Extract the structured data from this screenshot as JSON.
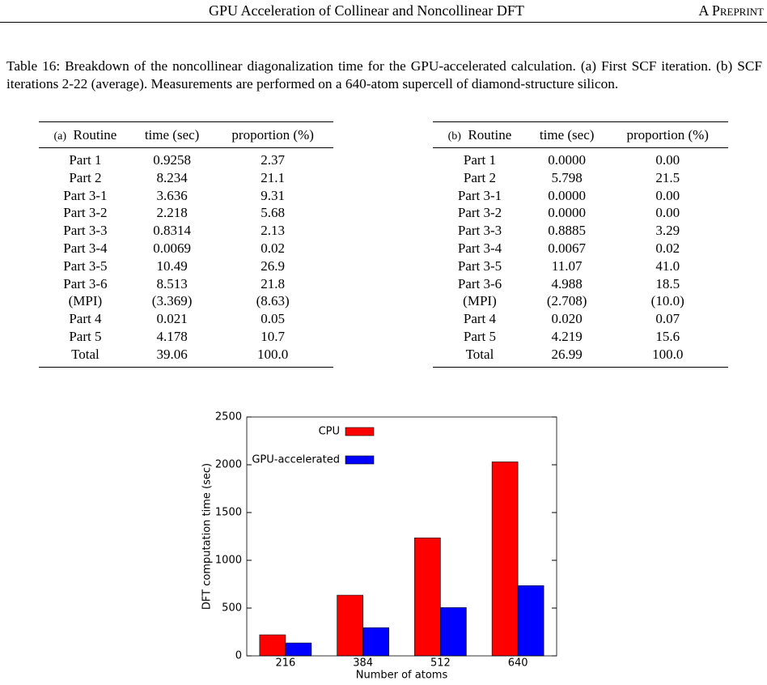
{
  "header": {
    "title": "GPU Acceleration of Collinear and Noncollinear DFT",
    "tag": "A Preprint"
  },
  "caption": "Table 16: Breakdown of the noncollinear diagonalization time for the GPU-accelerated calculation. (a) First SCF iteration. (b) SCF iterations 2-22 (average). Measurements are performed on a 640-atom supercell of diamond-structure silicon.",
  "tables": [
    {
      "label": "(a)",
      "columns": [
        "Routine",
        "time (sec)",
        "proportion (%)"
      ],
      "rows": [
        [
          "Part 1",
          "0.9258",
          "2.37"
        ],
        [
          "Part 2",
          "8.234",
          "21.1"
        ],
        [
          "Part 3-1",
          "3.636",
          "9.31"
        ],
        [
          "Part 3-2",
          "2.218",
          "5.68"
        ],
        [
          "Part 3-3",
          "0.8314",
          "2.13"
        ],
        [
          "Part 3-4",
          "0.0069",
          "0.02"
        ],
        [
          "Part 3-5",
          "10.49",
          "26.9"
        ],
        [
          "Part 3-6",
          "8.513",
          "21.8"
        ],
        [
          "(MPI)",
          "(3.369)",
          "(8.63)"
        ],
        [
          "Part 4",
          "0.021",
          "0.05"
        ],
        [
          "Part 5",
          "4.178",
          "10.7"
        ],
        [
          "Total",
          "39.06",
          "100.0"
        ]
      ]
    },
    {
      "label": "(b)",
      "columns": [
        "Routine",
        "time (sec)",
        "proportion (%)"
      ],
      "rows": [
        [
          "Part 1",
          "0.0000",
          "0.00"
        ],
        [
          "Part 2",
          "5.798",
          "21.5"
        ],
        [
          "Part 3-1",
          "0.0000",
          "0.00"
        ],
        [
          "Part 3-2",
          "0.0000",
          "0.00"
        ],
        [
          "Part 3-3",
          "0.8885",
          "3.29"
        ],
        [
          "Part 3-4",
          "0.0067",
          "0.02"
        ],
        [
          "Part 3-5",
          "11.07",
          "41.0"
        ],
        [
          "Part 3-6",
          "4.988",
          "18.5"
        ],
        [
          "(MPI)",
          "(2.708)",
          "(10.0)"
        ],
        [
          "Part 4",
          "0.020",
          "0.07"
        ],
        [
          "Part 5",
          "4.219",
          "15.6"
        ],
        [
          "Total",
          "26.99",
          "100.0"
        ]
      ]
    }
  ],
  "chart_data": {
    "type": "bar",
    "x_label": "Number of atoms",
    "y_label": "DFT computation time (sec)",
    "categories": [
      "216",
      "384",
      "512",
      "640"
    ],
    "series": [
      {
        "name": "CPU",
        "color": "#ff0000",
        "values": [
          220,
          635,
          1235,
          2030
        ]
      },
      {
        "name": "GPU-accelerated",
        "color": "#0000ff",
        "values": [
          135,
          295,
          505,
          735
        ]
      }
    ],
    "ylim": [
      0,
      2500
    ],
    "yticks": [
      0,
      500,
      1000,
      1500,
      2000,
      2500
    ],
    "grid": false
  }
}
